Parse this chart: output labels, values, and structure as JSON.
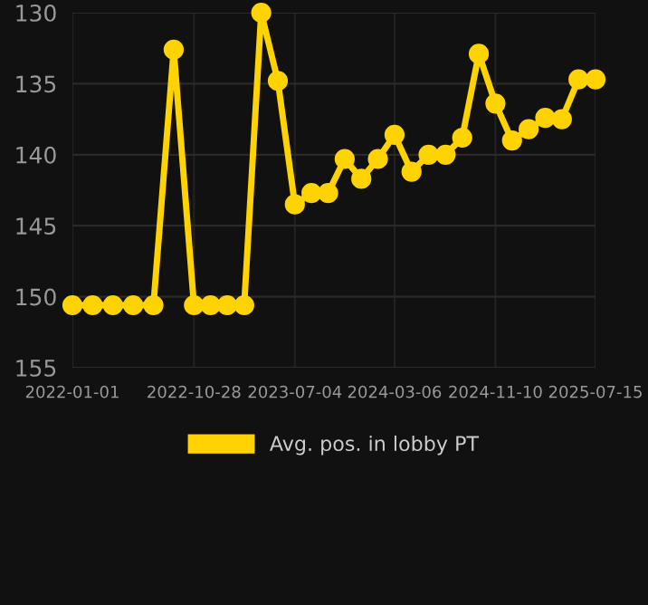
{
  "chart_data": {
    "type": "line",
    "x": [
      "2022-01-01",
      "2022-02-20",
      "2022-04-11",
      "2022-05-31",
      "2022-07-20",
      "2022-09-08",
      "2022-10-28",
      "2022-12-08",
      "2023-01-18",
      "2023-03-01",
      "2023-04-12",
      "2023-05-23",
      "2023-07-04",
      "2023-08-14",
      "2023-09-24",
      "2023-11-04",
      "2023-12-15",
      "2024-01-25",
      "2024-03-06",
      "2024-04-17",
      "2024-05-29",
      "2024-07-10",
      "2024-08-20",
      "2024-09-30",
      "2024-11-10",
      "2024-12-21",
      "2025-01-31",
      "2025-03-13",
      "2025-04-23",
      "2025-06-03",
      "2025-07-15"
    ],
    "series": [
      {
        "name": "Avg. pos. in lobby PT",
        "color": "#ffd300",
        "values": [
          150.6,
          150.6,
          150.6,
          150.6,
          150.6,
          132.6,
          150.6,
          150.6,
          150.6,
          150.6,
          130.0,
          134.8,
          143.5,
          142.7,
          142.7,
          140.3,
          141.7,
          140.3,
          138.6,
          141.2,
          140.0,
          140.0,
          138.8,
          132.9,
          136.4,
          139.0,
          138.2,
          137.4,
          137.5,
          134.7,
          134.7
        ]
      }
    ],
    "ylim": [
      155,
      130
    ],
    "yticks": [
      130,
      135,
      140,
      145,
      150,
      155
    ],
    "xlim": [
      "2022-01-01",
      "2025-07-15"
    ],
    "xticks": [
      "2022-01-01",
      "2022-10-28",
      "2023-07-04",
      "2024-03-06",
      "2024-11-10",
      "2025-07-15"
    ],
    "grid": true,
    "legend": "bottom",
    "marker": "circle",
    "line_style": "solid"
  }
}
